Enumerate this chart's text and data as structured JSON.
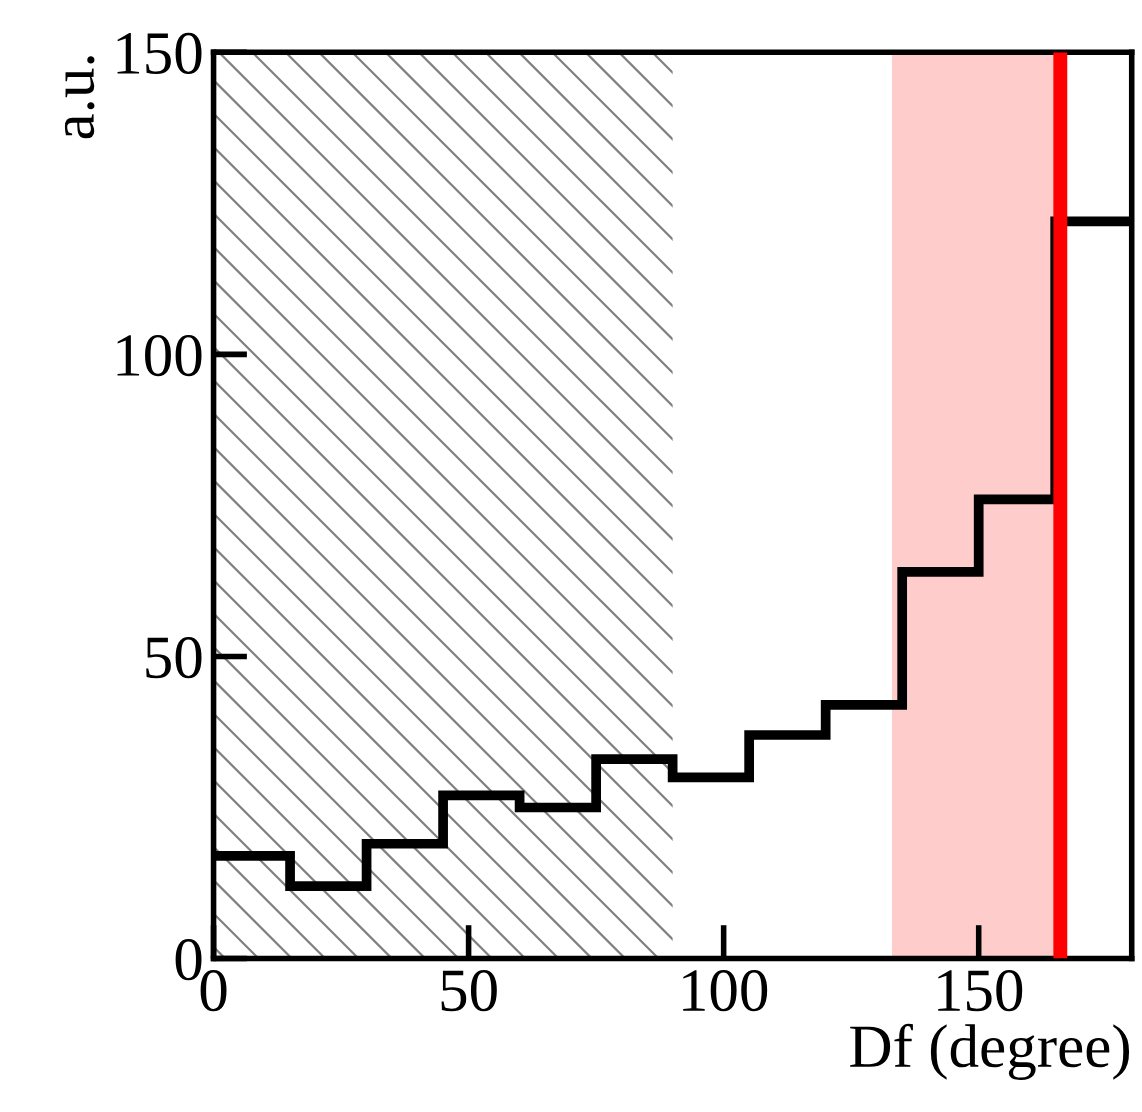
{
  "chart_data": {
    "type": "histogram",
    "xlabel": "Df (degree)",
    "ylabel": "a.u.",
    "bins": [
      0,
      15,
      30,
      45,
      60,
      75,
      90,
      105,
      120,
      135,
      150,
      165,
      180
    ],
    "values": [
      17,
      12,
      19,
      27,
      25,
      33,
      30,
      37,
      42,
      64,
      76,
      122
    ],
    "color": "#000000",
    "xlim": [
      0,
      180
    ],
    "xticks": [
      0,
      50,
      100,
      150
    ],
    "ylim": [
      0,
      150
    ],
    "yticks": [
      0,
      50,
      100,
      150
    ],
    "bands": [
      {
        "axis": "x",
        "from": 0,
        "to": 90,
        "color": "#808080"
      },
      {
        "axis": "x",
        "from": 133,
        "to": 165,
        "color": "#ffcccc"
      }
    ],
    "ref_lines": [
      {
        "axis": "x",
        "value": 166,
        "color": "#ff0000"
      }
    ],
    "grid": false,
    "legend": false
  }
}
